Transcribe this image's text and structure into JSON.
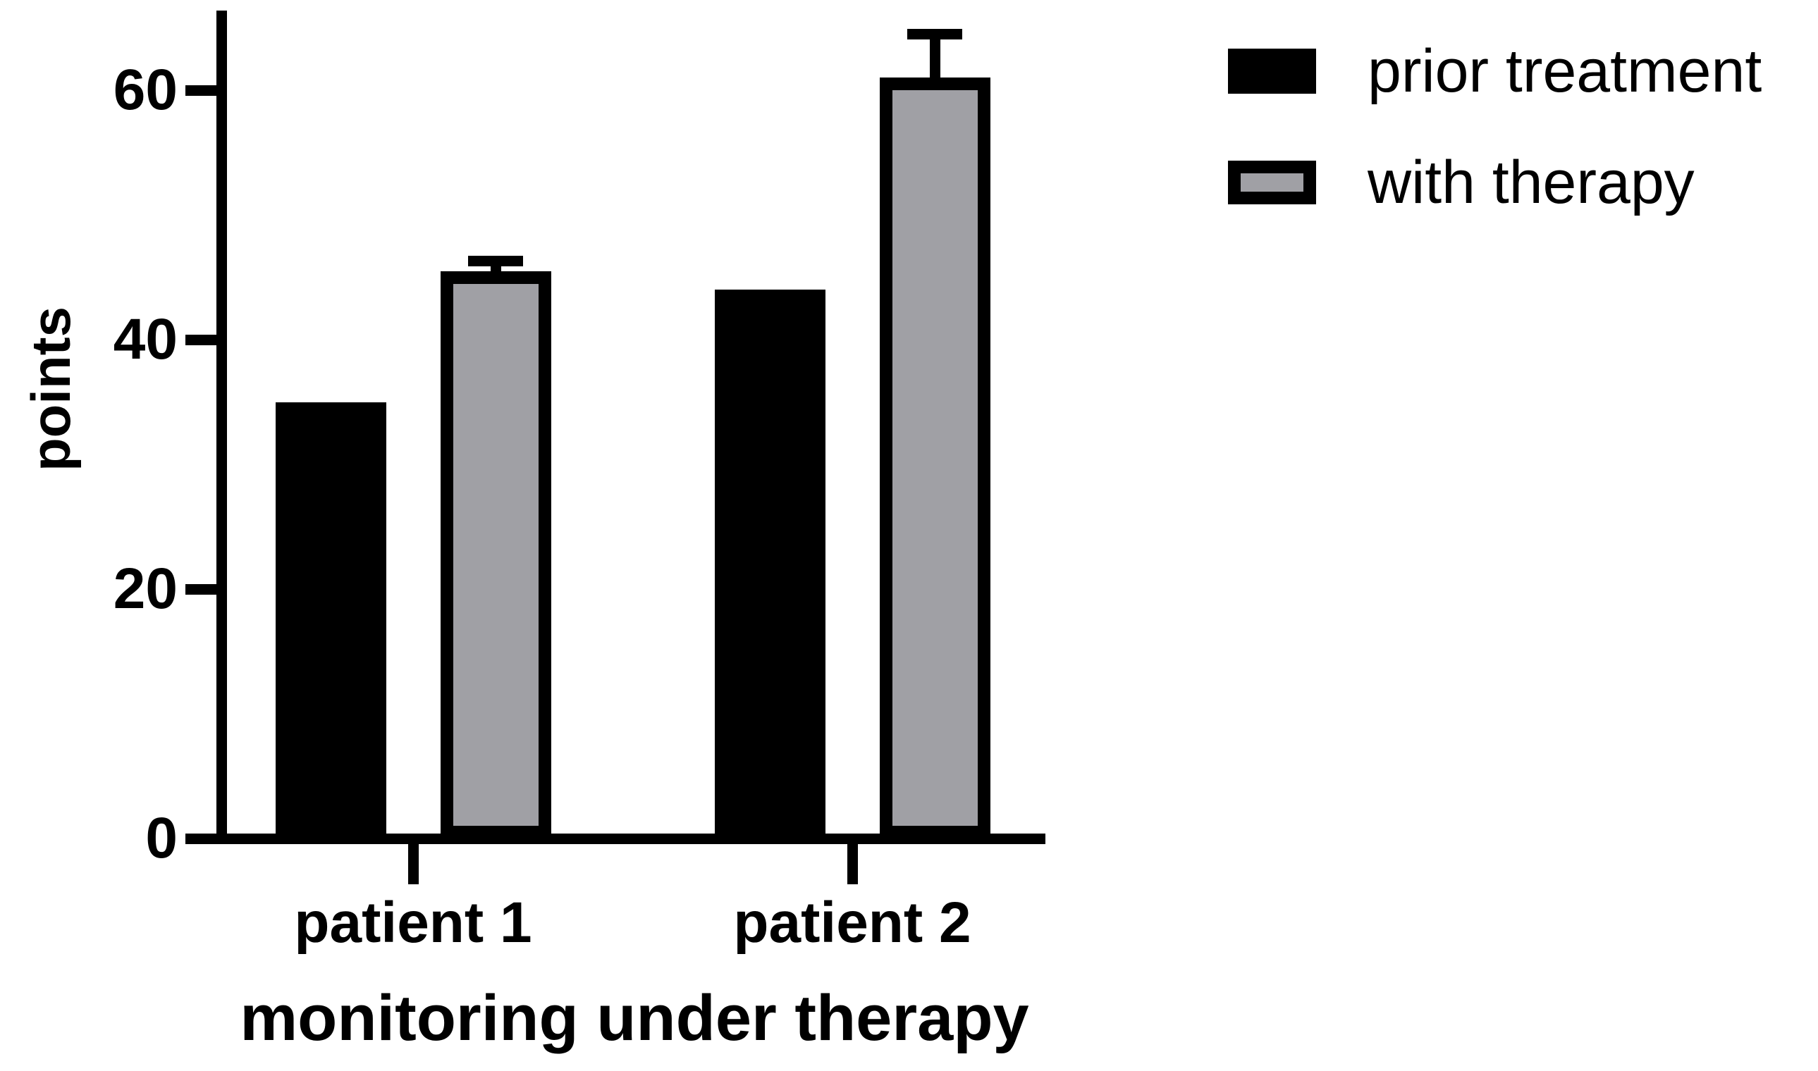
{
  "chart_data": {
    "type": "bar",
    "title": "",
    "xlabel": "monitoring under therapy",
    "ylabel": "points",
    "categories": [
      "patient 1",
      "patient 2"
    ],
    "series": [
      {
        "name": "prior treatment",
        "color": "#000000",
        "values": [
          35,
          44
        ],
        "errors": [
          0,
          0
        ]
      },
      {
        "name": "with therapy",
        "color": "#a0a0a5",
        "values": [
          45.5,
          61
        ],
        "errors": [
          0.8,
          3.5
        ]
      }
    ],
    "yticks": [
      0,
      20,
      40,
      60
    ],
    "ylim": [
      0,
      66
    ],
    "grid": false,
    "error_bars": "upper-only",
    "legend_position": "top-right"
  },
  "colors": {
    "axis": "#000000",
    "bar_outline": "#000000",
    "gray_fill": "#a0a0a5",
    "background": "#ffffff"
  }
}
